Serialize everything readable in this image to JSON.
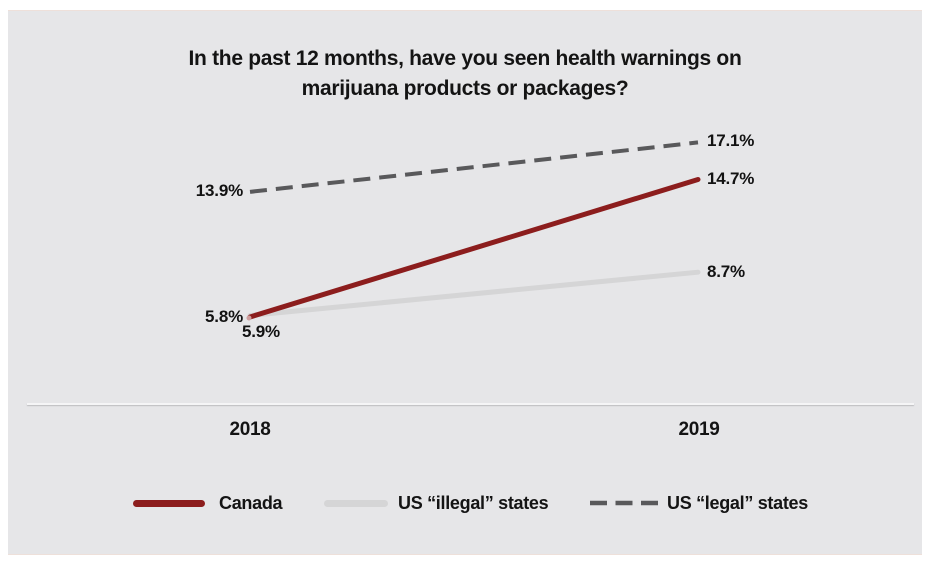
{
  "title": {
    "line1": "In the past 12 months, have you seen health warnings on",
    "line2": "marijuana products or packages?"
  },
  "chart_data": {
    "type": "line",
    "title": "In the past 12 months, have you seen health warnings on marijuana products or packages?",
    "categories": [
      "2018",
      "2019"
    ],
    "series": [
      {
        "name": "Canada",
        "values": [
          5.8,
          14.7
        ],
        "labels": [
          "5.8%",
          "14.7%"
        ],
        "color": "#8C1D1D",
        "line_style": "solid"
      },
      {
        "name": "US “illegal” states",
        "values": [
          5.9,
          8.7
        ],
        "labels": [
          "5.9%",
          "8.7%"
        ],
        "color": "#D5D5D6",
        "line_style": "solid"
      },
      {
        "name": "US “legal” states",
        "values": [
          13.9,
          17.1
        ],
        "labels": [
          "13.9%",
          "17.1%"
        ],
        "color": "#59595B",
        "line_style": "dashed"
      }
    ],
    "value_format": "percent",
    "grid": false,
    "legend_position": "bottom",
    "panel_background": "#E6E6E8"
  }
}
